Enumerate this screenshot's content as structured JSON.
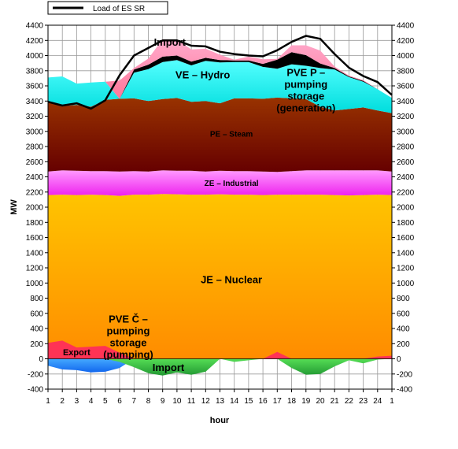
{
  "chart_data": {
    "type": "area",
    "title": "",
    "xlabel": "hour",
    "ylabel": "MW",
    "ylim": [
      -400,
      4400
    ],
    "yticks": [
      -400,
      -200,
      0,
      200,
      400,
      600,
      800,
      1000,
      1200,
      1400,
      1600,
      1800,
      2000,
      2200,
      2400,
      2600,
      2800,
      3000,
      3200,
      3400,
      3600,
      3800,
      4000,
      4200,
      4400
    ],
    "x_tick_labels": [
      "1",
      "2",
      "3",
      "4",
      "5",
      "6",
      "7",
      "8",
      "9",
      "10",
      "11",
      "12",
      "13",
      "14",
      "15",
      "16",
      "17",
      "18",
      "19",
      "20",
      "21",
      "22",
      "23",
      "24",
      "1"
    ],
    "grid": true,
    "legend": {
      "position": "top-left",
      "entries": [
        "Load of ES SR"
      ]
    },
    "layers": [
      {
        "name": "JE – Nuclear",
        "color": "#ffb300",
        "values": [
          2160,
          2165,
          2160,
          2165,
          2160,
          2150,
          2165,
          2165,
          2175,
          2170,
          2165,
          2165,
          2170,
          2165,
          2165,
          2160,
          2165,
          2165,
          2165,
          2165,
          2160,
          2155,
          2160,
          2165,
          2160
        ]
      },
      {
        "name": "ZE – Industrial",
        "color": "#ff55ff",
        "values": [
          310,
          320,
          320,
          310,
          315,
          320,
          310,
          305,
          310,
          310,
          315,
          305,
          310,
          310,
          310,
          310,
          300,
          310,
          320,
          320,
          325,
          330,
          325,
          320,
          310
        ]
      },
      {
        "name": "PE – Steam",
        "color": "#8b2c0b",
        "values": [
          930,
          850,
          870,
          850,
          940,
          960,
          960,
          930,
          940,
          960,
          910,
          930,
          890,
          960,
          960,
          960,
          980,
          960,
          940,
          840,
          790,
          810,
          830,
          790,
          770
        ]
      },
      {
        "name": "VE – Hydro",
        "color": "#11eeee",
        "values": [
          310,
          390,
          280,
          320,
          240,
          0,
          340,
          420,
          490,
          500,
          480,
          530,
          540,
          480,
          480,
          420,
          380,
          450,
          440,
          510,
          540,
          420,
          340,
          280,
          200
        ]
      },
      {
        "name": "PVE P – pumping storage (generation)",
        "color": "#0000ee",
        "values": [
          0,
          0,
          0,
          0,
          0,
          0,
          40,
          60,
          70,
          60,
          50,
          40,
          30,
          20,
          20,
          40,
          120,
          160,
          140,
          60,
          20,
          10,
          10,
          0,
          0
        ]
      },
      {
        "name": "Import",
        "color": "#ff99bb",
        "values": [
          0,
          0,
          0,
          0,
          0,
          240,
          20,
          80,
          230,
          210,
          160,
          120,
          70,
          10,
          50,
          60,
          10,
          90,
          130,
          170,
          20,
          10,
          10,
          0,
          0
        ]
      }
    ],
    "negative_layers": [
      {
        "name": "Export",
        "color": "#2288ff",
        "values": [
          -90,
          -140,
          -150,
          -180,
          -170,
          -120,
          0,
          0,
          0,
          0,
          0,
          0,
          0,
          0,
          0,
          0,
          0,
          0,
          0,
          0,
          0,
          0,
          0,
          0,
          0
        ]
      },
      {
        "name": "Import",
        "color": "#33cc44",
        "values": [
          0,
          0,
          0,
          0,
          0,
          -40,
          -110,
          -190,
          -220,
          -180,
          -210,
          -170,
          0,
          -40,
          -20,
          0,
          0,
          -120,
          -210,
          -200,
          -100,
          -20,
          -60,
          -10,
          0
        ]
      }
    ],
    "overlay_areas": [
      {
        "name": "PVE Č – pumping storage (pumping)",
        "color": "#ff3355",
        "values": [
          210,
          240,
          150,
          160,
          170,
          80,
          0,
          0,
          0,
          0,
          0,
          0,
          0,
          0,
          0,
          0,
          90,
          0,
          0,
          0,
          0,
          0,
          0,
          30,
          40
        ]
      }
    ],
    "line": {
      "name": "Load of ES SR",
      "color": "#000000",
      "values": [
        3390,
        3340,
        3370,
        3300,
        3410,
        3740,
        4000,
        4100,
        4200,
        4200,
        4130,
        4120,
        4050,
        4020,
        4000,
        3990,
        4070,
        4180,
        4260,
        4220,
        4020,
        3840,
        3730,
        3650,
        3480
      ]
    },
    "annotations": [
      {
        "lines": [
          "Import"
        ],
        "x": 9.5,
        "y": 4130,
        "size": 13
      },
      {
        "lines": [
          "VE – Hydro"
        ],
        "x": 11.8,
        "y": 3700,
        "size": 13
      },
      {
        "lines": [
          "PVE P –",
          "pumping",
          "storage",
          "(generation)"
        ],
        "x": 19.0,
        "y": 3730,
        "size": 13
      },
      {
        "lines": [
          "PE – Steam"
        ],
        "x": 13.8,
        "y": 2930,
        "size": 10
      },
      {
        "lines": [
          "ZE – Industrial"
        ],
        "x": 13.8,
        "y": 2280,
        "size": 10
      },
      {
        "lines": [
          "JE – Nuclear"
        ],
        "x": 13.8,
        "y": 1000,
        "size": 13
      },
      {
        "lines": [
          "PVE Č –",
          "pumping",
          "storage",
          "(pumping)"
        ],
        "x": 6.6,
        "y": 480,
        "size": 13
      },
      {
        "lines": [
          "Export"
        ],
        "x": 3.0,
        "y": 45,
        "size": 11
      },
      {
        "lines": [
          "Import"
        ],
        "x": 9.4,
        "y": -160,
        "size": 13
      }
    ]
  }
}
